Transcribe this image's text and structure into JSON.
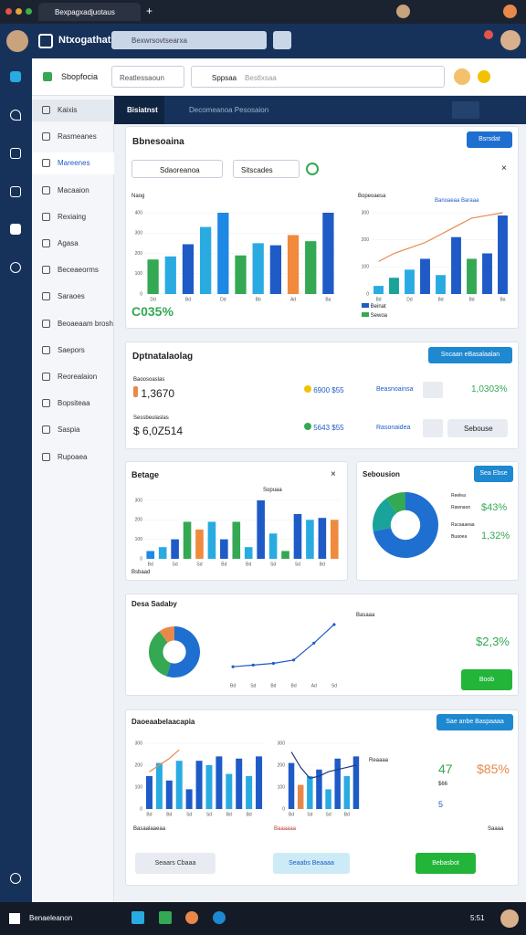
{
  "browser": {
    "tab": "Bexpagxadjuotaus"
  },
  "app": {
    "name": "Ntxogathat",
    "search": "Bexwrsovtsearxa"
  },
  "toolbar": {
    "title": "Sbopfocia",
    "select": "Reatlessaoun",
    "search": "Sppsaa",
    "hint": "Bestlxsaa"
  },
  "nav": [
    "Kaixis",
    "Rasmeanes",
    "Mareenes",
    "Macaaion",
    "Rexiaing",
    "Agasa",
    "Beceaeorms",
    "Saraoes",
    "Beoaeaam brosh",
    "Saepors",
    "Reorealaion",
    "Bopsiteaa",
    "Saspia",
    "Rupoaea"
  ],
  "header": {
    "title": "Bisiatnst",
    "tabs": "Decomeanoa  Pesosaion"
  },
  "overview": {
    "title": "Bbnesoaina",
    "button": "Bsrsdat",
    "filter": "Sdaoreanoa",
    "filter2": "Sitscades",
    "total": "C035%",
    "legend": [
      "Beinat",
      "Sewoa"
    ],
    "annotation": "Banoaeaa Baraaa",
    "charts": [
      {
        "type": "bar",
        "ylabel": "Naog",
        "categories": [
          "Dd",
          null,
          "Bd",
          null,
          "Dd",
          null,
          "Bb",
          null,
          "Ad",
          null,
          "Ba"
        ],
        "values": [
          170,
          185,
          245,
          330,
          400,
          190,
          250,
          240,
          290,
          260,
          400
        ],
        "colors": [
          "#34a853",
          "#29abe2",
          "#1e5bc6",
          "#29abe2",
          "#1e88e5",
          "#34a853",
          "#29abe2",
          "#1e5bc6",
          "#f08a3c",
          "#34a853",
          "#1e5bc6"
        ],
        "ylim": [
          0,
          400
        ],
        "yticks": [
          0,
          100,
          200,
          300,
          400
        ],
        "grid": true
      },
      {
        "type": "bar",
        "ylabel": "Bopeoaesa",
        "categories": [
          "Bd",
          null,
          "Dd",
          null,
          "Bd",
          null,
          "Bd",
          null,
          "Ba"
        ],
        "values": [
          30,
          60,
          90,
          130,
          70,
          210,
          130,
          150,
          290
        ],
        "colors": [
          "#29abe2",
          "#1aa39a",
          "#29abe2",
          "#1e5bc6",
          "#29abe2",
          "#1e5bc6",
          "#34a853",
          "#1e5bc6",
          "#1e5bc6"
        ],
        "ylim": [
          0,
          300
        ],
        "yticks": [
          0,
          100,
          200,
          300
        ],
        "grid": true,
        "line": {
          "color": "#e8894a",
          "values": [
            120,
            150,
            170,
            190,
            220,
            250,
            280,
            290,
            300
          ]
        }
      }
    ]
  },
  "kpis": {
    "title": "Dptnatalaolag",
    "button": "Sncaan eBasalaalan",
    "rows": [
      {
        "label": "Baoosoaslas",
        "value": "1,3670",
        "badge": "6900 $55",
        "name": "Beasnoainsa",
        "change": "1,0303%"
      },
      {
        "label": "Sessbeulaslas",
        "value": "$ 6,0Z514",
        "badge": "5643 $55",
        "name": "Rasonaidea",
        "action": "Sebouse"
      }
    ]
  },
  "budget": {
    "title": "Betage",
    "ylabel": "Sopuaa",
    "note": "Bsbaad",
    "chart": {
      "type": "bar",
      "categories": [
        "Bd",
        null,
        "Sd",
        null,
        "Sd",
        null,
        "Bd",
        null,
        "Bd",
        null,
        "Sd",
        null,
        "Sd",
        null,
        "Bd",
        null
      ],
      "values": [
        40,
        60,
        100,
        190,
        150,
        190,
        100,
        190,
        60,
        300,
        130,
        40,
        230,
        200,
        210,
        200
      ],
      "colors": [
        "#1e88e5",
        "#29abe2",
        "#1e5bc6",
        "#34a853",
        "#f08a3c",
        "#29abe2",
        "#1e5bc6",
        "#34a853",
        "#29abe2",
        "#1e5bc6",
        "#29abe2",
        "#34a853",
        "#1e5bc6",
        "#29abe2",
        "#1e5bc6",
        "#f08a3c"
      ],
      "ylim": [
        0,
        300
      ],
      "yticks": [
        0,
        100,
        200,
        300
      ],
      "grid": true
    }
  },
  "session": {
    "title": "Sebousion",
    "button": "Sea Ebse",
    "labels": [
      "Reelea",
      "Rawnaon",
      "Rucaaaeaa",
      "Buaoea"
    ],
    "value1": "$43%",
    "value2": "1,32%",
    "chart": {
      "type": "pie",
      "donut": true,
      "values": [
        72,
        18,
        10
      ],
      "colors": [
        "#1e6fd0",
        "#1aa39a",
        "#34a853"
      ]
    }
  },
  "sales": {
    "title": "Desa Sadaby",
    "label": "Basaaa",
    "value": "$2,3%",
    "button": "Boob",
    "charts": [
      {
        "type": "pie",
        "donut": true,
        "values": [
          55,
          35,
          10
        ],
        "colors": [
          "#1e6fd0",
          "#34a853",
          "#e8894a"
        ]
      },
      {
        "type": "line",
        "categories": [
          "Bd",
          "Sd",
          "Bd",
          "Bd",
          "Ad",
          "Sd"
        ],
        "values": [
          80,
          90,
          100,
          120,
          220,
          330
        ],
        "color": "#1e5bc6",
        "ylim": [
          0,
          400
        ]
      }
    ]
  },
  "detail": {
    "title": "Daoeaabelaacapia",
    "button": "Sae anbe Baspaaaa",
    "label": "Reaaaa",
    "n1": "47",
    "p1": "$85%",
    "n2": "$66",
    "n3": "5",
    "foot1": "Basaalaaeaa",
    "foot2": "Baaaaaa",
    "foot3": "Saaaa",
    "buttons": [
      "Seaars Cbaaa",
      "Seaabs Beaaaa",
      "Bebasbot"
    ],
    "charts": [
      {
        "type": "bar",
        "categories": [
          "Bd",
          null,
          "Bd",
          null,
          "Sd",
          null,
          "Sd",
          null,
          "Bd",
          null,
          "Bd",
          null
        ],
        "values": [
          150,
          210,
          130,
          220,
          90,
          220,
          200,
          240,
          160,
          230,
          150,
          240
        ],
        "colors": [
          "#1e5bc6",
          "#29abe2",
          "#1e5bc6",
          "#29abe2",
          "#1e5bc6",
          "#1e5bc6",
          "#29abe2",
          "#1e5bc6",
          "#29abe2",
          "#1e5bc6",
          "#29abe2",
          "#1e5bc6"
        ],
        "ylim": [
          0,
          300
        ],
        "yticks": [
          0,
          100,
          200,
          300
        ],
        "grid": true,
        "line": {
          "color": "#e8894a",
          "values": [
            170,
            200,
            230,
            270,
            null,
            null,
            null,
            null,
            null,
            null,
            null,
            null
          ]
        }
      },
      {
        "type": "bar",
        "categories": [
          "Bd",
          null,
          "Sd",
          null,
          "Sd",
          null,
          "Bd",
          null
        ],
        "values": [
          210,
          110,
          150,
          180,
          90,
          230,
          150,
          240
        ],
        "colors": [
          "#1e5bc6",
          "#e8894a",
          "#29abe2",
          "#1e5bc6",
          "#29abe2",
          "#1e5bc6",
          "#29abe2",
          "#1e5bc6"
        ],
        "ylim": [
          0,
          300
        ],
        "yticks": [
          0,
          100,
          200,
          300
        ],
        "grid": true,
        "line": {
          "color": "#1e3a7a",
          "values": [
            260,
            190,
            140,
            150,
            170,
            180,
            190,
            200
          ]
        }
      }
    ]
  },
  "taskbar": {
    "app": "Benaeleanon",
    "time": "5:51"
  }
}
